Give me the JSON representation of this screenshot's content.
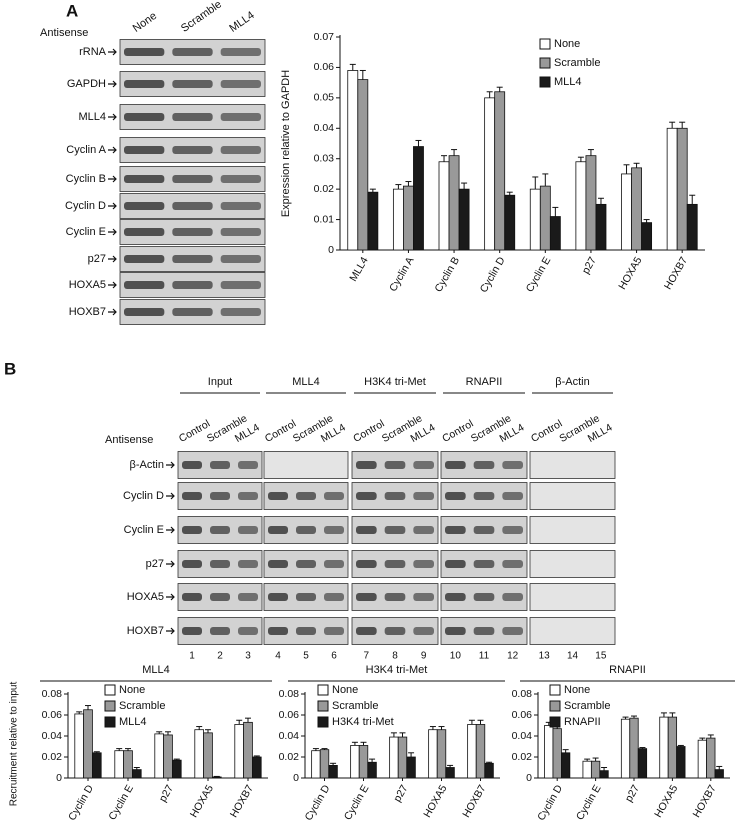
{
  "panel_a": {
    "label": "A",
    "header": "Antisense",
    "lanes": [
      "None",
      "Scramble",
      "MLL4"
    ],
    "rows": [
      "rRNA",
      "GAPDH",
      "MLL4",
      "Cyclin A",
      "Cyclin B",
      "Cyclin D",
      "Cyclin E",
      "p27",
      "HOXA5",
      "HOXB7"
    ]
  },
  "panel_b": {
    "label": "B",
    "header": "Antisense",
    "groups": [
      {
        "name": "Input",
        "lanes": [
          "Control",
          "Scramble",
          "MLL4"
        ]
      },
      {
        "name": "MLL4",
        "lanes": [
          "Control",
          "Scramble",
          "MLL4"
        ]
      },
      {
        "name": "H3K4 tri-Met",
        "lanes": [
          "Control",
          "Scramble",
          "MLL4"
        ]
      },
      {
        "name": "RNAPII",
        "lanes": [
          "Control",
          "Scramble",
          "MLL4"
        ]
      },
      {
        "name": "β-Actin",
        "lanes": [
          "Control",
          "Scramble",
          "MLL4"
        ]
      }
    ],
    "rows": [
      "β-Actin",
      "Cyclin D",
      "Cyclin E",
      "p27",
      "HOXA5",
      "HOXB7"
    ],
    "lane_numbers": [
      1,
      2,
      3,
      4,
      5,
      6,
      7,
      8,
      9,
      10,
      11,
      12,
      13,
      14,
      15
    ]
  },
  "chart_data": [
    {
      "type": "bar",
      "ylabel": "Expression relative to GAPDH",
      "categories": [
        "MLL4",
        "Cyclin A",
        "Cyclin B",
        "Cyclin D",
        "Cyclin E",
        "p27",
        "HOXA5",
        "HOXB7"
      ],
      "ylim": [
        0,
        0.07
      ],
      "yticks": [
        0,
        0.01,
        0.02,
        0.03,
        0.04,
        0.05,
        0.06,
        0.07
      ],
      "legend": "upper right",
      "series": [
        {
          "name": "None",
          "color": "#ffffff",
          "values": [
            0.059,
            0.02,
            0.029,
            0.05,
            0.02,
            0.029,
            0.025,
            0.04
          ],
          "errors": [
            0.002,
            0.0015,
            0.002,
            0.002,
            0.004,
            0.0015,
            0.003,
            0.002
          ]
        },
        {
          "name": "Scramble",
          "color": "#999999",
          "values": [
            0.056,
            0.021,
            0.031,
            0.052,
            0.021,
            0.031,
            0.027,
            0.04
          ],
          "errors": [
            0.003,
            0.0015,
            0.002,
            0.0015,
            0.004,
            0.002,
            0.0015,
            0.002
          ]
        },
        {
          "name": "MLL4",
          "color": "#1a1a1a",
          "values": [
            0.019,
            0.034,
            0.02,
            0.018,
            0.011,
            0.015,
            0.009,
            0.015
          ],
          "errors": [
            0.001,
            0.002,
            0.002,
            0.001,
            0.003,
            0.002,
            0.001,
            0.003
          ]
        }
      ]
    },
    {
      "type": "bar",
      "title": "MLL4",
      "ylabel": "Recruitment relative to input",
      "categories": [
        "Cyclin D",
        "Cyclin E",
        "p27",
        "HOXA5",
        "HOXB7"
      ],
      "ylim": [
        0,
        0.08
      ],
      "yticks": [
        0,
        0.02,
        0.04,
        0.06,
        0.08
      ],
      "legend": "upper left",
      "series": [
        {
          "name": "None",
          "color": "#ffffff",
          "values": [
            0.061,
            0.026,
            0.042,
            0.046,
            0.051
          ],
          "errors": [
            0.002,
            0.002,
            0.002,
            0.003,
            0.004
          ]
        },
        {
          "name": "Scramble",
          "color": "#999999",
          "values": [
            0.065,
            0.026,
            0.041,
            0.043,
            0.053
          ],
          "errors": [
            0.004,
            0.002,
            0.003,
            0.003,
            0.004
          ]
        },
        {
          "name": "MLL4",
          "color": "#1a1a1a",
          "values": [
            0.024,
            0.008,
            0.017,
            0.001,
            0.02
          ],
          "errors": [
            0.001,
            0.002,
            0.001,
            0.0005,
            0.001
          ]
        }
      ]
    },
    {
      "type": "bar",
      "title": "H3K4 tri-Met",
      "categories": [
        "Cyclin D",
        "Cyclin E",
        "p27",
        "HOXA5",
        "HOXB7"
      ],
      "ylim": [
        0,
        0.08
      ],
      "yticks": [
        0,
        0.02,
        0.04,
        0.06,
        0.08
      ],
      "legend": "upper left",
      "series": [
        {
          "name": "None",
          "color": "#ffffff",
          "values": [
            0.026,
            0.031,
            0.039,
            0.046,
            0.051
          ],
          "errors": [
            0.002,
            0.003,
            0.004,
            0.003,
            0.004
          ]
        },
        {
          "name": "Scramble",
          "color": "#999999",
          "values": [
            0.027,
            0.031,
            0.039,
            0.046,
            0.051
          ],
          "errors": [
            0.001,
            0.003,
            0.004,
            0.003,
            0.004
          ]
        },
        {
          "name": "H3K4 tri-Met",
          "color": "#1a1a1a",
          "values": [
            0.012,
            0.015,
            0.02,
            0.01,
            0.014
          ],
          "errors": [
            0.002,
            0.003,
            0.004,
            0.002,
            0.001
          ]
        }
      ]
    },
    {
      "type": "bar",
      "title": "RNAPII",
      "categories": [
        "Cyclin D",
        "Cyclin E",
        "p27",
        "HOXA5",
        "HOXB7"
      ],
      "ylim": [
        0,
        0.08
      ],
      "yticks": [
        0,
        0.02,
        0.04,
        0.06,
        0.08
      ],
      "legend": "upper left",
      "series": [
        {
          "name": "None",
          "color": "#ffffff",
          "values": [
            0.05,
            0.016,
            0.056,
            0.058,
            0.036
          ],
          "errors": [
            0.003,
            0.002,
            0.002,
            0.004,
            0.002
          ]
        },
        {
          "name": "Scramble",
          "color": "#999999",
          "values": [
            0.047,
            0.016,
            0.057,
            0.058,
            0.038
          ],
          "errors": [
            0.003,
            0.003,
            0.002,
            0.004,
            0.003
          ]
        },
        {
          "name": "RNAPII",
          "color": "#1a1a1a",
          "values": [
            0.024,
            0.007,
            0.028,
            0.03,
            0.008
          ],
          "errors": [
            0.003,
            0.003,
            0.001,
            0.001,
            0.003
          ]
        }
      ]
    }
  ]
}
